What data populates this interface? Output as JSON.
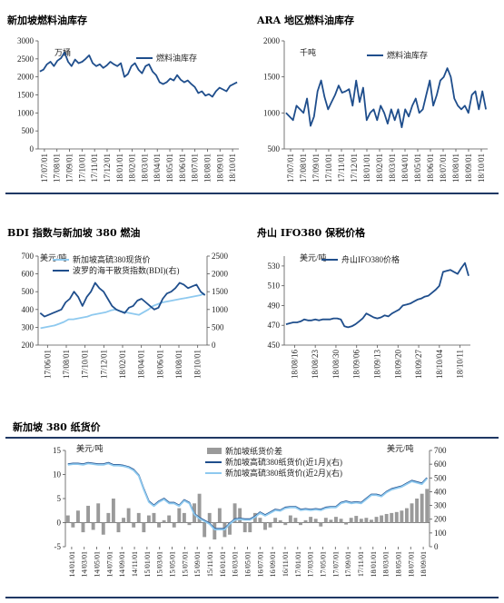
{
  "colors": {
    "dark_blue": "#1f4e8c",
    "light_blue": "#8ec9ef",
    "grey_bar": "#9a9a9a",
    "rule": "#1f3864"
  },
  "chart_data": [
    {
      "type": "line",
      "title": "新加坡燃料油库存",
      "unit": "万桶",
      "x_ticks": [
        "17/07/01",
        "17/08/01",
        "17/09/01",
        "17/10/01",
        "17/11/01",
        "17/12/01",
        "18/01/01",
        "18/02/01",
        "18/03/01",
        "18/04/01",
        "18/05/01",
        "18/06/01",
        "18/07/01",
        "18/08/01",
        "18/09/01",
        "18/10/01"
      ],
      "ylim": [
        0,
        3000
      ],
      "y_ticks": [
        0,
        500,
        1000,
        1500,
        2000,
        2500,
        3000
      ],
      "series": [
        {
          "name": "燃料油库存",
          "color": "#1f4e8c",
          "values": [
            2150,
            2200,
            2350,
            2420,
            2300,
            2450,
            2520,
            2680,
            2420,
            2300,
            2480,
            2380,
            2420,
            2500,
            2600,
            2380,
            2300,
            2350,
            2250,
            2320,
            2420,
            2350,
            2300,
            2380,
            2000,
            2080,
            2300,
            2380,
            2200,
            2100,
            2300,
            2350,
            2150,
            2050,
            1850,
            1800,
            1850,
            1950,
            1900,
            2050,
            1920,
            1850,
            1900,
            1800,
            1720,
            1550,
            1600,
            1480,
            1520,
            1450,
            1600,
            1700,
            1650,
            1600,
            1750,
            1800,
            1850
          ]
        }
      ]
    },
    {
      "type": "line",
      "title": "ARA 地区燃料油库存",
      "unit": "千吨",
      "x_ticks": [
        "17/07/01",
        "17/08/01",
        "17/09/01",
        "17/10/01",
        "17/11/01",
        "17/12/01",
        "18/01/01",
        "18/02/01",
        "18/03/01",
        "18/04/01",
        "18/05/01",
        "18/06/01",
        "18/07/01",
        "18/08/01",
        "18/09/01",
        "18/10/01"
      ],
      "ylim": [
        500,
        2000
      ],
      "y_ticks": [
        500,
        1000,
        1500,
        2000
      ],
      "series": [
        {
          "name": "燃料油库存",
          "color": "#1f4e8c",
          "values": [
            1000,
            950,
            900,
            1100,
            1050,
            1000,
            1200,
            820,
            950,
            1300,
            1450,
            1220,
            1050,
            1150,
            1250,
            1380,
            1280,
            1300,
            1330,
            1100,
            1450,
            1150,
            1350,
            900,
            1000,
            1050,
            900,
            1100,
            1000,
            850,
            1050,
            900,
            1050,
            800,
            1050,
            950,
            1100,
            1200,
            1000,
            1050,
            1250,
            1450,
            1100,
            1250,
            1450,
            1500,
            1620,
            1500,
            1200,
            1100,
            1050,
            1100,
            1000,
            1250,
            1300,
            1050,
            1300,
            1050
          ]
        }
      ]
    },
    {
      "type": "line",
      "title": "BDI 指数与新加坡 380 燃油",
      "unit": "美元/吨",
      "x_ticks": [
        "17/06/01",
        "17/08/01",
        "17/10/01",
        "17/12/01",
        "18/02/01",
        "18/04/01",
        "18/06/01",
        "18/08/01",
        "18/10/01"
      ],
      "ylim": [
        200,
        700
      ],
      "y_ticks": [
        200,
        300,
        400,
        500,
        600,
        700
      ],
      "y2lim": [
        0,
        2500
      ],
      "y2_ticks": [
        0,
        500,
        1000,
        1500,
        2000,
        2500
      ],
      "series": [
        {
          "name": "新加坡高硫380现货价",
          "axis": "left",
          "color": "#8ec9ef",
          "values": [
            295,
            300,
            305,
            310,
            320,
            330,
            345,
            345,
            350,
            355,
            360,
            370,
            375,
            380,
            385,
            395,
            400,
            390,
            385,
            380,
            375,
            370,
            385,
            400,
            420,
            430,
            440,
            445,
            450,
            455,
            460,
            465,
            470,
            475,
            480,
            490
          ]
        },
        {
          "name": "波罗的海干散货指数(BDI)(右)",
          "axis": "right",
          "color": "#1f4e8c",
          "values": [
            900,
            800,
            850,
            900,
            950,
            1000,
            1200,
            1300,
            1500,
            1350,
            1100,
            1350,
            1500,
            1750,
            1600,
            1500,
            1300,
            1100,
            1000,
            950,
            900,
            1050,
            1100,
            1250,
            1300,
            1200,
            1100,
            1000,
            1050,
            1300,
            1450,
            1500,
            1600,
            1750,
            1700,
            1600,
            1650,
            1700,
            1500,
            1400
          ]
        }
      ]
    },
    {
      "type": "line",
      "title": "舟山 IFO380 保税价格",
      "unit": "美元/吨",
      "x_ticks": [
        "18/08/16",
        "18/08/23",
        "18/08/30",
        "18/09/06",
        "18/09/13",
        "18/09/20",
        "18/09/27",
        "18/10/04",
        "18/10/11"
      ],
      "ylim": [
        450,
        540
      ],
      "y_ticks": [
        450,
        470,
        490,
        510,
        530
      ],
      "series": [
        {
          "name": "舟山IFO380价格",
          "color": "#1f4e8c",
          "values": [
            471,
            472,
            473,
            473,
            474,
            476,
            475,
            475,
            476,
            475,
            476,
            476,
            476,
            477,
            477,
            476,
            469,
            468,
            469,
            471,
            474,
            477,
            482,
            480,
            478,
            477,
            478,
            480,
            479,
            482,
            484,
            486,
            490,
            491,
            492,
            494,
            496,
            497,
            499,
            500,
            503,
            506,
            510,
            524,
            525,
            526,
            524,
            522,
            528,
            533,
            520
          ]
        }
      ]
    },
    {
      "type": "bar",
      "title": "新加坡 380 纸货价",
      "unit_left": "美元/吨",
      "unit_right": "美元/吨",
      "x_ticks": [
        "14/01/01",
        "14/03/01",
        "14/05/01",
        "14/07/01",
        "14/09/01",
        "14/11/01",
        "15/01/01",
        "15/03/01",
        "15/05/01",
        "15/07/01",
        "15/09/01",
        "15/11/01",
        "16/01/01",
        "16/03/01",
        "16/05/01",
        "16/07/01",
        "16/09/01",
        "16/11/01",
        "17/01/01",
        "17/03/01",
        "17/05/01",
        "17/07/01",
        "17/09/01",
        "17/11/01",
        "18/01/01",
        "18/03/01",
        "18/05/01",
        "18/07/01",
        "18/09/01"
      ],
      "ylim": [
        -5,
        15
      ],
      "y_ticks": [
        -5,
        0,
        5,
        10,
        15
      ],
      "y2lim": [
        0,
        700
      ],
      "y2_ticks": [
        0,
        100,
        200,
        300,
        400,
        500,
        600,
        700
      ],
      "series": [
        {
          "name": "新加坡纸货价差",
          "axis": "left",
          "kind": "bar",
          "color": "#9a9a9a",
          "values": [
            1.5,
            -1,
            2.5,
            -2,
            3.5,
            -1.5,
            4,
            -2.5,
            2,
            5,
            -2,
            1,
            3,
            -1,
            2,
            -2,
            1.5,
            2,
            -1,
            0.5,
            1.5,
            -1,
            3,
            2,
            -0.5,
            4,
            6,
            -3,
            2,
            -3.5,
            3,
            -3,
            -2.5,
            4,
            3,
            -2,
            -2,
            2,
            1,
            -1.5,
            -1,
            1,
            0.5,
            -0.5,
            1.5,
            1,
            -0.5,
            0.5,
            1.2,
            0.8,
            -0.8,
            1,
            0.6,
            1.2,
            0.8,
            -0.4,
            1,
            1.4,
            0.8,
            1,
            0.6,
            1.2,
            1.5,
            1.8,
            2,
            2.2,
            2.5,
            3,
            4,
            5,
            6,
            7
          ]
        },
        {
          "name": "新加坡高硫380纸货价(近1月)(右)",
          "axis": "right",
          "kind": "line",
          "color": "#1f4e8c",
          "values": [
            600,
            605,
            605,
            600,
            610,
            605,
            600,
            600,
            610,
            595,
            595,
            590,
            580,
            560,
            520,
            420,
            330,
            300,
            330,
            350,
            320,
            320,
            300,
            340,
            320,
            240,
            210,
            190,
            170,
            130,
            130,
            130,
            170,
            200,
            205,
            200,
            200,
            220,
            250,
            230,
            250,
            270,
            265,
            285,
            290,
            290,
            270,
            275,
            270,
            275,
            270,
            285,
            290,
            290,
            320,
            330,
            320,
            325,
            320,
            350,
            380,
            380,
            370,
            400,
            420,
            430,
            440,
            460,
            480,
            470,
            460,
            500
          ]
        },
        {
          "name": "新加坡高硫380纸货价(近2月)(右)",
          "axis": "right",
          "kind": "line",
          "color": "#8ec9ef",
          "values": [
            595,
            600,
            600,
            595,
            605,
            600,
            595,
            595,
            605,
            590,
            590,
            585,
            575,
            555,
            515,
            415,
            325,
            295,
            325,
            345,
            315,
            315,
            295,
            335,
            315,
            235,
            205,
            185,
            165,
            125,
            125,
            125,
            165,
            195,
            200,
            195,
            195,
            215,
            245,
            225,
            245,
            265,
            260,
            280,
            285,
            285,
            265,
            270,
            265,
            270,
            265,
            280,
            285,
            285,
            315,
            325,
            315,
            320,
            315,
            345,
            375,
            375,
            365,
            395,
            415,
            425,
            435,
            455,
            475,
            465,
            455,
            495
          ]
        }
      ]
    }
  ]
}
